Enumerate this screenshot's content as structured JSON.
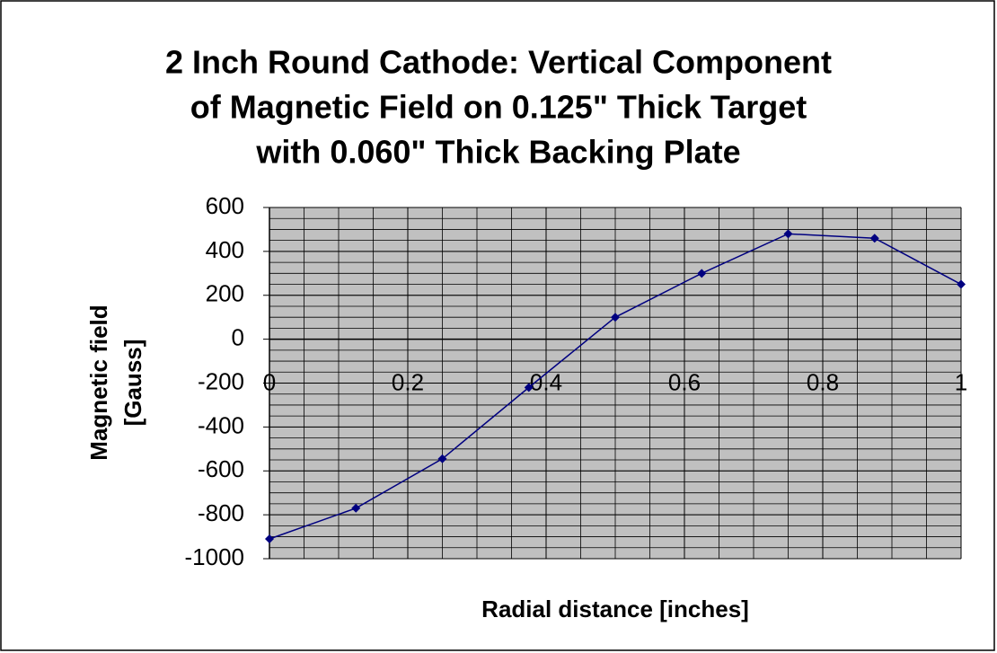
{
  "chart_data": {
    "type": "line",
    "title": [
      "2 Inch Round Cathode: Vertical Component",
      "of Magnetic Field on 0.125\" Thick Target",
      "with 0.060\" Thick Backing Plate"
    ],
    "x_label": "Radial distance [inches]",
    "y_label": [
      "Magnetic field",
      "[Gauss]"
    ],
    "x": [
      0,
      0.125,
      0.25,
      0.375,
      0.5,
      0.625,
      0.75,
      0.875,
      1
    ],
    "series": [
      {
        "name": "Magnetic field",
        "color": "#000080",
        "values": [
          -910,
          -770,
          -545,
          -220,
          100,
          300,
          480,
          460,
          250
        ]
      }
    ],
    "xlim": [
      0,
      1
    ],
    "xticks": [
      0,
      0.2,
      0.4,
      0.6,
      0.8,
      1
    ],
    "ylim": [
      -1000,
      600
    ],
    "yticks": [
      -1000,
      -800,
      -600,
      -400,
      -200,
      0,
      200,
      400,
      600
    ],
    "grid": true,
    "minor_grid": true,
    "plot_background": "#c0c0c0"
  }
}
